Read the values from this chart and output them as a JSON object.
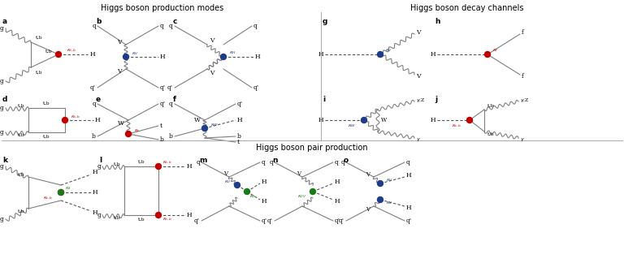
{
  "title_top": "Higgs boson production modes",
  "title_right": "Higgs boson decay channels",
  "title_bottom": "Higgs boson pair production",
  "bg_color": "#ffffff",
  "line_color": "#7f7f7f",
  "blue_dot": "#1f3c88",
  "red_dot": "#c00000",
  "green_dot": "#1a7a1a",
  "kappa_blue": "#1f3c88",
  "kappa_red": "#c00000",
  "kappa_green": "#1a7a1a"
}
